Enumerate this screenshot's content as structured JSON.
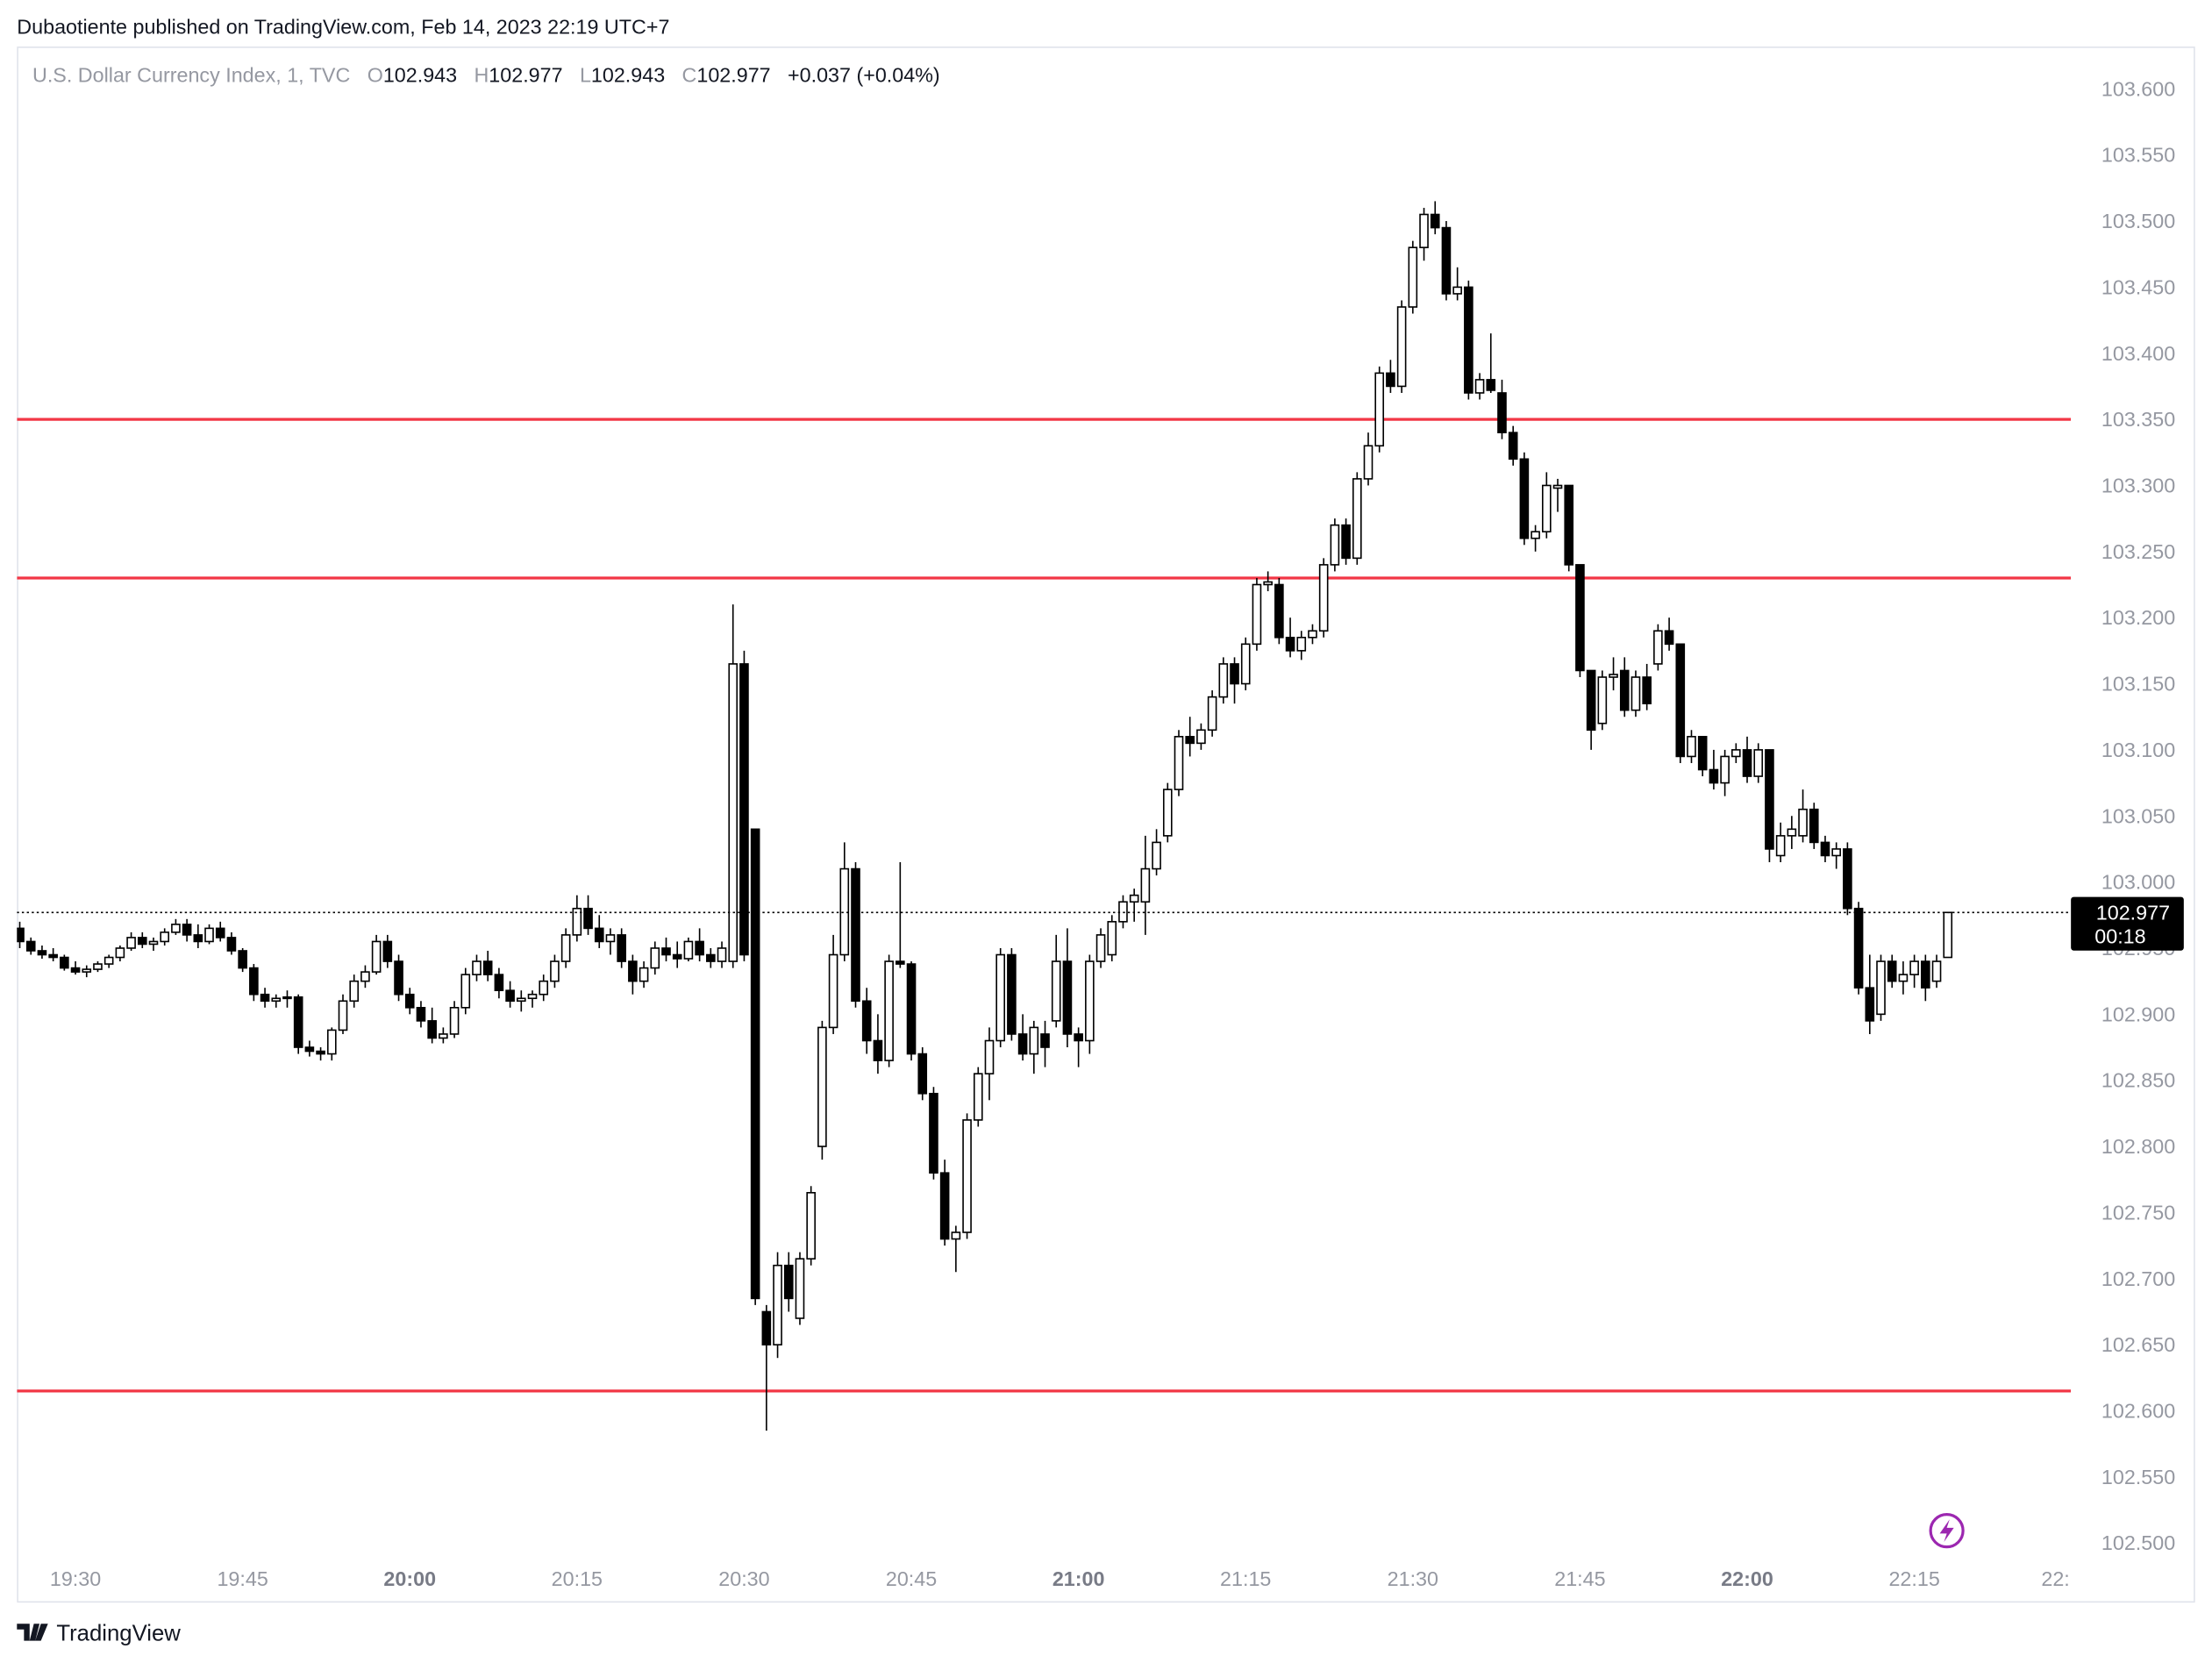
{
  "header": {
    "publisher": "Dubaotiente published on TradingView.com, Feb 14, 2023 22:19 UTC+7"
  },
  "footer": {
    "brand": "TradingView"
  },
  "chart_data": {
    "type": "candlestick",
    "legend": {
      "symbol": "U.S. Dollar Currency Index, 1, TVC",
      "ohlc_labels": [
        "O",
        "H",
        "L",
        "C"
      ],
      "open": 102.943,
      "high": 102.977,
      "low": 102.943,
      "close": 102.977,
      "change": "+0.037 (+0.04%)"
    },
    "countdown": "00:18",
    "up_color": "#ffffff",
    "down_color": "#000000",
    "border_color": "#000000",
    "levels": [
      103.35,
      103.23,
      102.615
    ],
    "level_color": "#f23645",
    "ylim": [
      102.488,
      103.632
    ],
    "yticks": [
      {
        "value": 102.5,
        "label": "102.500"
      },
      {
        "value": 102.55,
        "label": "102.550"
      },
      {
        "value": 102.6,
        "label": "102.600"
      },
      {
        "value": 102.65,
        "label": "102.650"
      },
      {
        "value": 102.7,
        "label": "102.700"
      },
      {
        "value": 102.75,
        "label": "102.750"
      },
      {
        "value": 102.8,
        "label": "102.800"
      },
      {
        "value": 102.85,
        "label": "102.850"
      },
      {
        "value": 102.9,
        "label": "102.900"
      },
      {
        "value": 102.95,
        "label": "102.950"
      },
      {
        "value": 103,
        "label": "103.000"
      },
      {
        "value": 103.05,
        "label": "103.050"
      },
      {
        "value": 103.1,
        "label": "103.100"
      },
      {
        "value": 103.15,
        "label": "103.150"
      },
      {
        "value": 103.2,
        "label": "103.200"
      },
      {
        "value": 103.25,
        "label": "103.250"
      },
      {
        "value": 103.3,
        "label": "103.300"
      },
      {
        "value": 103.35,
        "label": "103.350"
      },
      {
        "value": 103.4,
        "label": "103.400"
      },
      {
        "value": 103.45,
        "label": "103.450"
      },
      {
        "value": 103.5,
        "label": "103.500"
      },
      {
        "value": 103.55,
        "label": "103.550"
      },
      {
        "value": 103.6,
        "label": "103.600"
      }
    ],
    "xticks": [
      "19:30",
      "19:45",
      "20:00",
      "20:15",
      "20:30",
      "20:45",
      "21:00",
      "21:15",
      "21:30",
      "21:45",
      "22:00",
      "22:15",
      "22:"
    ],
    "candles": [
      [
        102.965,
        102.97,
        102.95,
        102.955
      ],
      [
        102.955,
        102.958,
        102.945,
        102.948
      ],
      [
        102.948,
        102.952,
        102.942,
        102.945
      ],
      [
        102.945,
        102.95,
        102.94,
        102.943
      ],
      [
        102.943,
        102.945,
        102.933,
        102.935
      ],
      [
        102.935,
        102.94,
        102.93,
        102.932
      ],
      [
        102.932,
        102.937,
        102.928,
        102.934
      ],
      [
        102.934,
        102.94,
        102.932,
        102.938
      ],
      [
        102.938,
        102.945,
        102.935,
        102.943
      ],
      [
        102.943,
        102.952,
        102.94,
        102.95
      ],
      [
        102.95,
        102.962,
        102.948,
        102.958
      ],
      [
        102.958,
        102.962,
        102.95,
        102.953
      ],
      [
        102.953,
        102.958,
        102.948,
        102.955
      ],
      [
        102.955,
        102.965,
        102.952,
        102.962
      ],
      [
        102.962,
        102.972,
        102.96,
        102.968
      ],
      [
        102.968,
        102.972,
        102.955,
        102.96
      ],
      [
        102.96,
        102.968,
        102.95,
        102.955
      ],
      [
        102.955,
        102.968,
        102.953,
        102.965
      ],
      [
        102.965,
        102.97,
        102.955,
        102.958
      ],
      [
        102.958,
        102.962,
        102.945,
        102.948
      ],
      [
        102.948,
        102.95,
        102.932,
        102.935
      ],
      [
        102.935,
        102.938,
        102.91,
        102.915
      ],
      [
        102.915,
        102.92,
        102.905,
        102.91
      ],
      [
        102.91,
        102.915,
        102.905,
        102.912
      ],
      [
        102.912,
        102.918,
        102.905,
        102.913
      ],
      [
        102.913,
        102.915,
        102.87,
        102.875
      ],
      [
        102.875,
        102.88,
        102.868,
        102.872
      ],
      [
        102.872,
        102.875,
        102.865,
        102.87
      ],
      [
        102.87,
        102.89,
        102.865,
        102.888
      ],
      [
        102.888,
        102.915,
        102.885,
        102.91
      ],
      [
        102.91,
        102.93,
        102.905,
        102.925
      ],
      [
        102.925,
        102.937,
        102.92,
        102.932
      ],
      [
        102.932,
        102.96,
        102.93,
        102.955
      ],
      [
        102.955,
        102.96,
        102.935,
        102.94
      ],
      [
        102.94,
        102.945,
        102.91,
        102.915
      ],
      [
        102.915,
        102.92,
        102.9,
        102.905
      ],
      [
        102.905,
        102.91,
        102.89,
        102.895
      ],
      [
        102.895,
        102.905,
        102.878,
        102.882
      ],
      [
        102.882,
        102.89,
        102.878,
        102.885
      ],
      [
        102.885,
        102.91,
        102.882,
        102.905
      ],
      [
        102.905,
        102.935,
        102.9,
        102.93
      ],
      [
        102.93,
        102.945,
        102.925,
        102.94
      ],
      [
        102.94,
        102.948,
        102.925,
        102.93
      ],
      [
        102.93,
        102.935,
        102.912,
        102.918
      ],
      [
        102.918,
        102.925,
        102.905,
        102.91
      ],
      [
        102.91,
        102.918,
        102.902,
        102.912
      ],
      [
        102.912,
        102.918,
        102.905,
        102.915
      ],
      [
        102.915,
        102.93,
        102.91,
        102.925
      ],
      [
        102.925,
        102.945,
        102.92,
        102.94
      ],
      [
        102.94,
        102.965,
        102.935,
        102.96
      ],
      [
        102.96,
        102.99,
        102.955,
        102.98
      ],
      [
        102.98,
        102.99,
        102.96,
        102.965
      ],
      [
        102.965,
        102.975,
        102.95,
        102.955
      ],
      [
        102.955,
        102.965,
        102.945,
        102.96
      ],
      [
        102.96,
        102.965,
        102.935,
        102.94
      ],
      [
        102.94,
        102.945,
        102.915,
        102.925
      ],
      [
        102.925,
        102.94,
        102.92,
        102.935
      ],
      [
        102.935,
        102.955,
        102.93,
        102.95
      ],
      [
        102.95,
        102.958,
        102.94,
        102.945
      ],
      [
        102.945,
        102.955,
        102.935,
        102.942
      ],
      [
        102.942,
        102.958,
        102.94,
        102.955
      ],
      [
        102.955,
        102.965,
        102.94,
        102.945
      ],
      [
        102.945,
        102.95,
        102.935,
        102.94
      ],
      [
        102.94,
        102.955,
        102.935,
        102.95
      ],
      [
        102.94,
        103.21,
        102.935,
        103.165
      ],
      [
        103.165,
        103.175,
        102.94,
        102.945
      ],
      [
        103.04,
        103.04,
        102.68,
        102.685
      ],
      [
        102.675,
        102.68,
        102.585,
        102.65
      ],
      [
        102.65,
        102.72,
        102.64,
        102.71
      ],
      [
        102.71,
        102.72,
        102.675,
        102.685
      ],
      [
        102.67,
        102.72,
        102.665,
        102.715
      ],
      [
        102.715,
        102.77,
        102.71,
        102.765
      ],
      [
        102.8,
        102.895,
        102.79,
        102.89
      ],
      [
        102.89,
        102.96,
        102.885,
        102.945
      ],
      [
        102.945,
        103.03,
        102.94,
        103.01
      ],
      [
        103.01,
        103.015,
        102.905,
        102.91
      ],
      [
        102.91,
        102.92,
        102.87,
        102.88
      ],
      [
        102.88,
        102.9,
        102.855,
        102.865
      ],
      [
        102.865,
        102.945,
        102.86,
        102.94
      ],
      [
        102.94,
        103.015,
        102.935,
        102.938
      ],
      [
        102.938,
        102.94,
        102.865,
        102.87
      ],
      [
        102.87,
        102.875,
        102.835,
        102.84
      ],
      [
        102.84,
        102.845,
        102.775,
        102.78
      ],
      [
        102.78,
        102.79,
        102.725,
        102.73
      ],
      [
        102.73,
        102.74,
        102.705,
        102.735
      ],
      [
        102.735,
        102.825,
        102.73,
        102.82
      ],
      [
        102.82,
        102.86,
        102.815,
        102.855
      ],
      [
        102.855,
        102.89,
        102.835,
        102.88
      ],
      [
        102.88,
        102.95,
        102.875,
        102.945
      ],
      [
        102.945,
        102.95,
        102.88,
        102.885
      ],
      [
        102.885,
        102.9,
        102.865,
        102.87
      ],
      [
        102.87,
        102.895,
        102.855,
        102.89
      ],
      [
        102.885,
        102.895,
        102.86,
        102.875
      ],
      [
        102.895,
        102.96,
        102.89,
        102.94
      ],
      [
        102.94,
        102.965,
        102.875,
        102.885
      ],
      [
        102.885,
        102.89,
        102.86,
        102.88
      ],
      [
        102.88,
        102.945,
        102.87,
        102.94
      ],
      [
        102.94,
        102.965,
        102.935,
        102.96
      ],
      [
        102.945,
        102.975,
        102.94,
        102.97
      ],
      [
        102.97,
        102.99,
        102.965,
        102.985
      ],
      [
        102.985,
        102.995,
        102.97,
        102.99
      ],
      [
        102.985,
        103.035,
        102.96,
        103.01
      ],
      [
        103.01,
        103.04,
        103.005,
        103.03
      ],
      [
        103.035,
        103.075,
        103.03,
        103.07
      ],
      [
        103.07,
        103.115,
        103.065,
        103.11
      ],
      [
        103.11,
        103.125,
        103.095,
        103.105
      ],
      [
        103.105,
        103.12,
        103.1,
        103.115
      ],
      [
        103.115,
        103.145,
        103.11,
        103.14
      ],
      [
        103.14,
        103.17,
        103.135,
        103.165
      ],
      [
        103.165,
        103.17,
        103.135,
        103.15
      ],
      [
        103.15,
        103.185,
        103.145,
        103.18
      ],
      [
        103.18,
        103.23,
        103.175,
        103.225
      ],
      [
        103.225,
        103.235,
        103.22,
        103.227
      ],
      [
        103.225,
        103.23,
        103.18,
        103.185
      ],
      [
        103.185,
        103.2,
        103.17,
        103.175
      ],
      [
        103.175,
        103.19,
        103.168,
        103.185
      ],
      [
        103.185,
        103.195,
        103.18,
        103.19
      ],
      [
        103.19,
        103.245,
        103.185,
        103.24
      ],
      [
        103.24,
        103.275,
        103.235,
        103.27
      ],
      [
        103.27,
        103.275,
        103.24,
        103.245
      ],
      [
        103.245,
        103.31,
        103.24,
        103.305
      ],
      [
        103.305,
        103.34,
        103.3,
        103.33
      ],
      [
        103.33,
        103.39,
        103.325,
        103.385
      ],
      [
        103.385,
        103.395,
        103.37,
        103.375
      ],
      [
        103.375,
        103.44,
        103.37,
        103.435
      ],
      [
        103.435,
        103.485,
        103.43,
        103.48
      ],
      [
        103.48,
        103.51,
        103.47,
        103.505
      ],
      [
        103.505,
        103.515,
        103.49,
        103.495
      ],
      [
        103.495,
        103.5,
        103.44,
        103.445
      ],
      [
        103.445,
        103.465,
        103.44,
        103.45
      ],
      [
        103.45,
        103.455,
        103.365,
        103.37
      ],
      [
        103.37,
        103.385,
        103.365,
        103.38
      ],
      [
        103.38,
        103.415,
        103.37,
        103.372
      ],
      [
        103.37,
        103.38,
        103.335,
        103.34
      ],
      [
        103.34,
        103.345,
        103.315,
        103.32
      ],
      [
        103.32,
        103.325,
        103.255,
        103.26
      ],
      [
        103.26,
        103.27,
        103.25,
        103.265
      ],
      [
        103.265,
        103.31,
        103.26,
        103.3
      ],
      [
        103.298,
        103.305,
        103.28,
        103.3
      ],
      [
        103.3,
        103.3,
        103.235,
        103.24
      ],
      [
        103.24,
        103.24,
        103.155,
        103.16
      ],
      [
        103.16,
        103.16,
        103.1,
        103.115
      ],
      [
        103.12,
        103.16,
        103.115,
        103.155
      ],
      [
        103.155,
        103.17,
        103.145,
        103.157
      ],
      [
        103.16,
        103.17,
        103.125,
        103.13
      ],
      [
        103.13,
        103.16,
        103.125,
        103.155
      ],
      [
        103.155,
        103.165,
        103.13,
        103.135
      ],
      [
        103.165,
        103.195,
        103.16,
        103.19
      ],
      [
        103.19,
        103.2,
        103.175,
        103.18
      ],
      [
        103.18,
        103.18,
        103.09,
        103.095
      ],
      [
        103.095,
        103.115,
        103.09,
        103.11
      ],
      [
        103.11,
        103.11,
        103.08,
        103.085
      ],
      [
        103.085,
        103.1,
        103.07,
        103.075
      ],
      [
        103.075,
        103.1,
        103.065,
        103.095
      ],
      [
        103.095,
        103.105,
        103.09,
        103.1
      ],
      [
        103.1,
        103.11,
        103.075,
        103.08
      ],
      [
        103.08,
        103.105,
        103.075,
        103.1
      ],
      [
        103.1,
        103.1,
        103.015,
        103.025
      ],
      [
        103.02,
        103.045,
        103.015,
        103.035
      ],
      [
        103.035,
        103.05,
        103.025,
        103.04
      ],
      [
        103.035,
        103.07,
        103.03,
        103.055
      ],
      [
        103.055,
        103.06,
        103.025,
        103.03
      ],
      [
        103.03,
        103.035,
        103.015,
        103.02
      ],
      [
        103.02,
        103.03,
        103.01,
        103.025
      ],
      [
        103.025,
        103.03,
        102.975,
        102.98
      ],
      [
        102.98,
        102.985,
        102.915,
        102.92
      ],
      [
        102.92,
        102.945,
        102.885,
        102.895
      ],
      [
        102.9,
        102.945,
        102.895,
        102.94
      ],
      [
        102.94,
        102.945,
        102.92,
        102.925
      ],
      [
        102.925,
        102.94,
        102.915,
        102.93
      ],
      [
        102.93,
        102.945,
        102.92,
        102.94
      ],
      [
        102.94,
        102.945,
        102.91,
        102.92
      ],
      [
        102.925,
        102.945,
        102.92,
        102.94
      ],
      [
        102.943,
        102.977,
        102.943,
        102.977
      ]
    ]
  }
}
